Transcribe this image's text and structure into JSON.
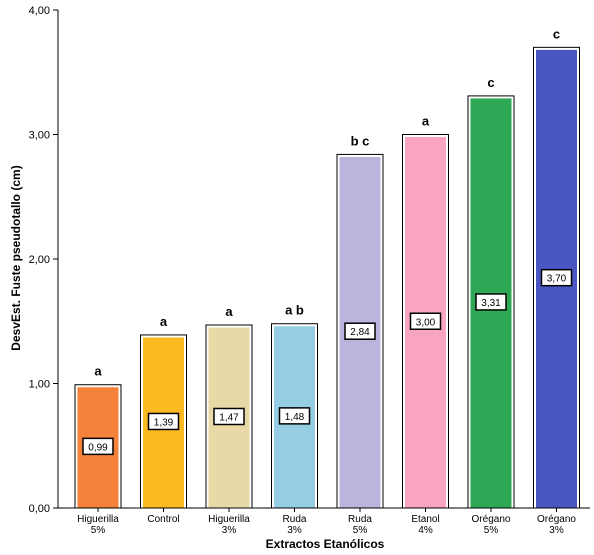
{
  "chart_data": {
    "type": "bar",
    "xlabel": "Extractos Etanólicos",
    "ylabel": "DesvEst. Fuste pseudotallo (cm)",
    "ylim": [
      0,
      4
    ],
    "yticks": [
      "0,00",
      "1,00",
      "2,00",
      "3,00",
      "4,00"
    ],
    "grid": false,
    "categories": [
      [
        "Higuerilla",
        "5%"
      ],
      [
        "Control"
      ],
      [
        "Higuerilla",
        "3%"
      ],
      [
        "Ruda",
        "3%"
      ],
      [
        "Ruda",
        "5%"
      ],
      [
        "Etanol",
        "4%"
      ],
      [
        "Orégano",
        "5%"
      ],
      [
        "Orégano",
        "3%"
      ]
    ],
    "values": [
      0.99,
      1.39,
      1.47,
      1.48,
      2.84,
      3.0,
      3.31,
      3.7
    ],
    "value_labels": [
      "0,99",
      "1,39",
      "1,47",
      "1,48",
      "2,84",
      "3,00",
      "3,31",
      "3,70"
    ],
    "significance_letters": [
      "a",
      "a",
      "a",
      "a b",
      "b c",
      "a",
      "c",
      "c"
    ],
    "colors": [
      "#f5823a",
      "#fbba22",
      "#e8d9a6",
      "#95cde3",
      "#bcb4dc",
      "#f9a5c0",
      "#2ea855",
      "#4a56c3"
    ]
  }
}
